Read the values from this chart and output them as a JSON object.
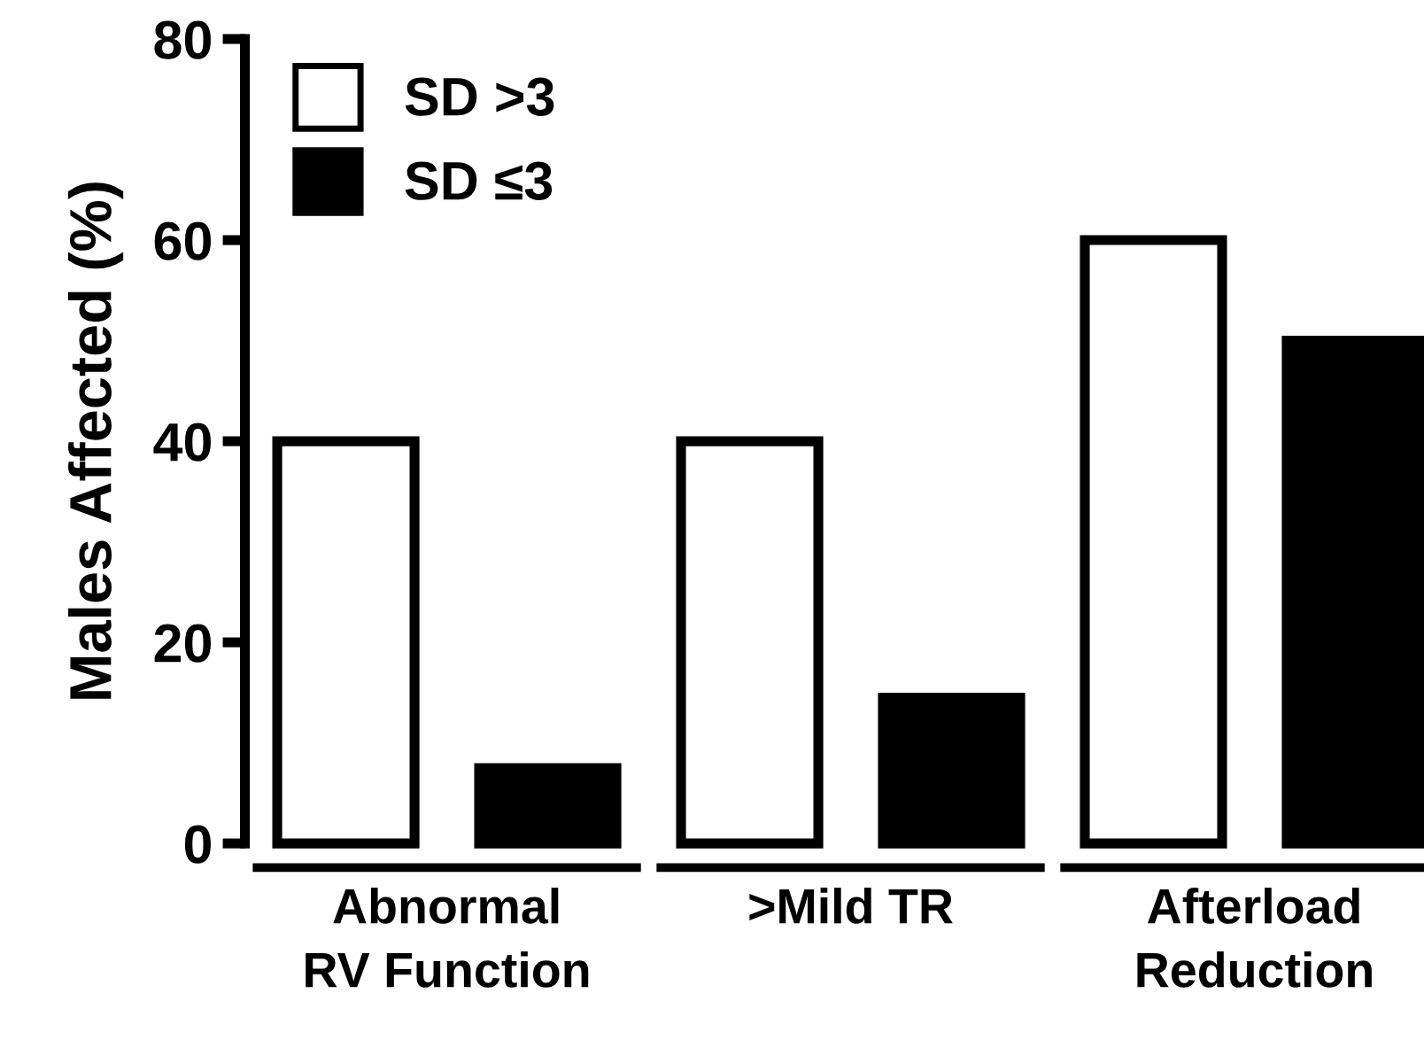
{
  "chart_data": {
    "type": "bar",
    "ylabel": "Males Affected (%)",
    "categories": [
      "Abnormal\nRV Function",
      ">Mild TR",
      "Afterload\nReduction"
    ],
    "series": [
      {
        "name": "SD >3",
        "color": "#ffffff",
        "values": [
          40,
          40,
          60
        ]
      },
      {
        "name": "SD ≤3",
        "color": "#000000",
        "values": [
          7.5,
          14.5,
          50
        ]
      }
    ],
    "ylim": [
      0,
      80
    ],
    "yticks": [
      0,
      20,
      40,
      60,
      80
    ],
    "grid": false,
    "legend": "top left"
  }
}
